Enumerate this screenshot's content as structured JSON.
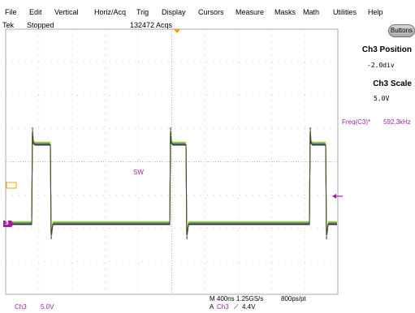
{
  "menu": [
    "File",
    "Edit",
    "Vertical",
    "Horiz/Acq",
    "Trig",
    "Display",
    "Cursors",
    "Measure",
    "Masks",
    "Math",
    "Utilities",
    "Help"
  ],
  "status": {
    "brand": "Tek",
    "state": "Stopped",
    "acquisitions": "132472 Acqs"
  },
  "buttons_label": "Buttons",
  "side_panel": {
    "position_title": "Ch3 Position",
    "position_value": "-2.0div",
    "scale_title": "Ch3 Scale",
    "scale_value": "5.0V"
  },
  "measurement": {
    "label": "Freq(C3)*",
    "value": "592.3kHz"
  },
  "waveform_label": "SW",
  "channel_marker": "3",
  "footer": {
    "channel": "Ch3",
    "scale": "5.0V",
    "timebase": "M 400ns 1.25GS/s",
    "resolution": "800ps/pt",
    "trigger_prefix": "A",
    "trigger_channel": "Ch3",
    "trigger_slope": "⟋",
    "trigger_level": "4.4V"
  },
  "colors": {
    "channel": "#a020a0",
    "grid": "#a8a8a8",
    "trace_main": "#e8e800",
    "trigger_marker": "#f0a000"
  }
}
